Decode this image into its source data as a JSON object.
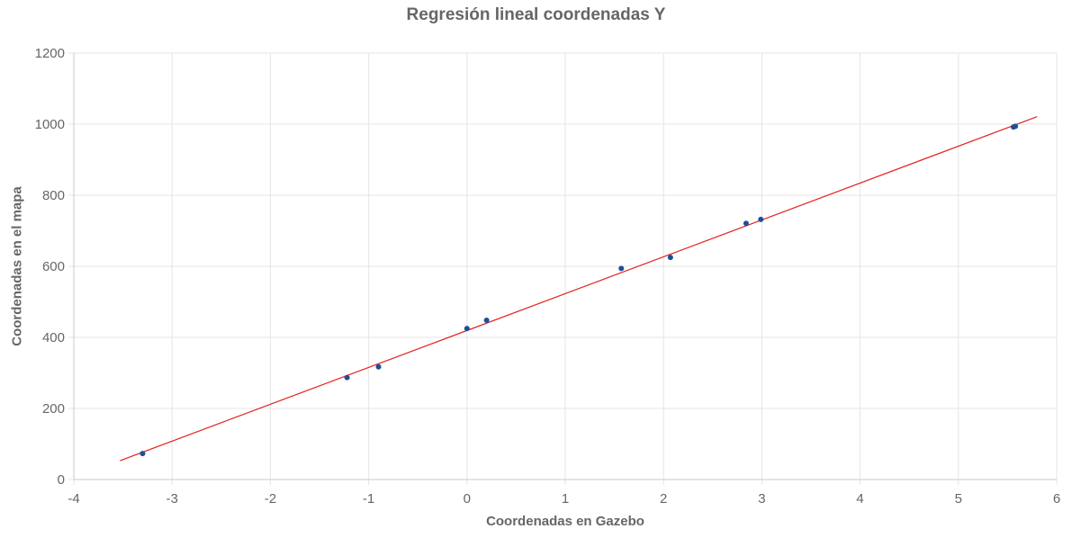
{
  "chart_data": {
    "type": "scatter",
    "title": "Regresión lineal coordenadas Y",
    "xlabel": "Coordenadas en Gazebo",
    "ylabel": "Coordenadas en el mapa",
    "xlim": [
      -4,
      6
    ],
    "ylim": [
      0,
      1200
    ],
    "x_ticks": [
      "-4",
      "-3",
      "-2",
      "-1",
      "0",
      "1",
      "2",
      "3",
      "4",
      "5",
      "6"
    ],
    "y_ticks": [
      "0",
      "200",
      "400",
      "600",
      "800",
      "1000",
      "1200"
    ],
    "grid": true,
    "legend": "none",
    "series": [
      {
        "type": "scatter",
        "color": "#1f4e99",
        "points": [
          {
            "x": -3.3,
            "y": 73
          },
          {
            "x": -1.22,
            "y": 287
          },
          {
            "x": -0.9,
            "y": 317
          },
          {
            "x": 0.0,
            "y": 425
          },
          {
            "x": 0.2,
            "y": 448
          },
          {
            "x": 1.57,
            "y": 594
          },
          {
            "x": 2.07,
            "y": 625
          },
          {
            "x": 2.84,
            "y": 721
          },
          {
            "x": 2.99,
            "y": 732
          },
          {
            "x": 5.56,
            "y": 992
          },
          {
            "x": 5.58,
            "y": 994
          }
        ]
      },
      {
        "type": "line",
        "color": "#e02020",
        "points": [
          {
            "x": -3.53,
            "y": 53
          },
          {
            "x": 5.8,
            "y": 1021
          }
        ]
      }
    ]
  }
}
